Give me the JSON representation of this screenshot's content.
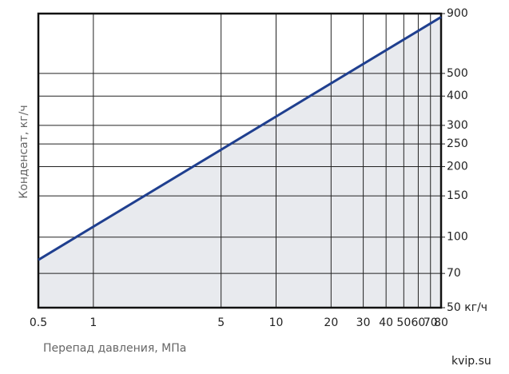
{
  "chart_data": {
    "type": "line",
    "y_label": "Конденсат, кг/ч",
    "x_label": "Перепад давления, МПа",
    "watermark": "kvip.su",
    "x": [
      0.5,
      80
    ],
    "values": [
      80,
      870
    ],
    "color": "#1f3f8f",
    "fill_color": "#e8eaee",
    "x_log": true,
    "y_log": true,
    "grid": true,
    "xlim": [
      0.5,
      80
    ],
    "xticks": [
      0.5,
      1,
      5,
      10,
      20,
      30,
      40,
      50,
      60,
      70,
      80
    ],
    "ylim": [
      50,
      900
    ],
    "yticks": [
      {
        "value": 50,
        "label": "50 кг/ч"
      },
      70,
      100,
      150,
      200,
      250,
      300,
      400,
      500,
      900
    ]
  }
}
